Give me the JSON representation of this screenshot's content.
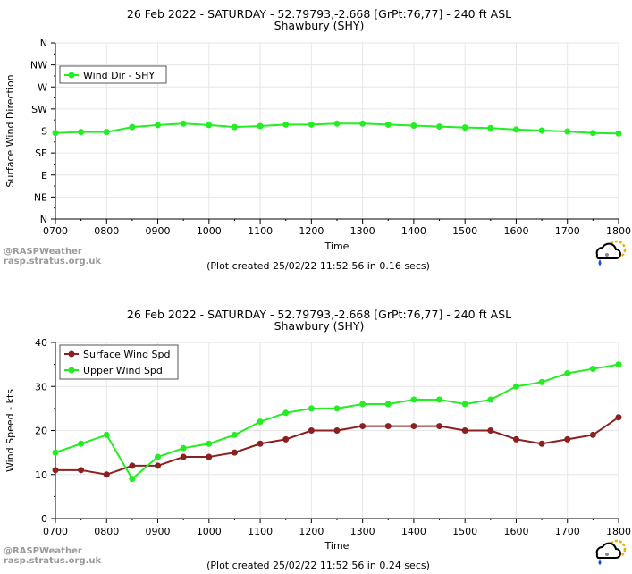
{
  "credit": {
    "line1": "@RASPWeather",
    "line2": "rasp.stratus.org.uk"
  },
  "colors": {
    "green": "#22ee22",
    "red": "#8b2020",
    "grid": "#e6e6e6",
    "axis": "#000000"
  },
  "logo_icon": "rain-cloud-sun-icon",
  "chart_data": [
    {
      "type": "line",
      "title": "26 Feb 2022 - SATURDAY - 52.79793,-2.668 [GrPt:76,77]  - 240 ft ASL",
      "subtitle": "Shawbury (SHY)",
      "xlabel": "Time",
      "ylabel": "Surface Wind Direction",
      "footer": "(Plot created 25/02/22 11:52:56 in 0.16 secs)",
      "x": [
        "0700",
        "0730",
        "0800",
        "0830",
        "0900",
        "0930",
        "1000",
        "1030",
        "1100",
        "1130",
        "1200",
        "1230",
        "1300",
        "1330",
        "1400",
        "1430",
        "1500",
        "1530",
        "1600",
        "1630",
        "1700",
        "1730",
        "1800"
      ],
      "xtick_labels": [
        "0700",
        "0800",
        "0900",
        "1000",
        "1100",
        "1200",
        "1300",
        "1400",
        "1500",
        "1600",
        "1700",
        "1800"
      ],
      "ytick_labels": [
        "N",
        "NE",
        "E",
        "SE",
        "S",
        "SW",
        "W",
        "NW",
        "N"
      ],
      "ylim": [
        0,
        360
      ],
      "grid": true,
      "legend_position": "top-left",
      "series": [
        {
          "name": "Wind Dir - SHY",
          "color": "#22ee22",
          "values": [
            176,
            178,
            178,
            188,
            192,
            195,
            192,
            188,
            190,
            193,
            193,
            195,
            195,
            193,
            191,
            189,
            187,
            186,
            183,
            181,
            179,
            176,
            175
          ]
        }
      ]
    },
    {
      "type": "line",
      "title": "26 Feb 2022 - SATURDAY - 52.79793,-2.668 [GrPt:76,77]  - 240 ft ASL",
      "subtitle": "Shawbury (SHY)",
      "xlabel": "Time",
      "ylabel": "Wind Speed - kts",
      "footer": "(Plot created 25/02/22 11:52:56 in 0.24 secs)",
      "x": [
        "0700",
        "0730",
        "0800",
        "0830",
        "0900",
        "0930",
        "1000",
        "1030",
        "1100",
        "1130",
        "1200",
        "1230",
        "1300",
        "1330",
        "1400",
        "1430",
        "1500",
        "1530",
        "1600",
        "1630",
        "1700",
        "1730",
        "1800"
      ],
      "xtick_labels": [
        "0700",
        "0800",
        "0900",
        "1000",
        "1100",
        "1200",
        "1300",
        "1400",
        "1500",
        "1600",
        "1700",
        "1800"
      ],
      "ytick_labels": [
        "0",
        "10",
        "20",
        "30",
        "40"
      ],
      "ylim": [
        0,
        40
      ],
      "grid": true,
      "legend_position": "top-left",
      "series": [
        {
          "name": "Surface Wind Spd",
          "color": "#8b2020",
          "values": [
            11,
            11,
            10,
            12,
            12,
            14,
            14,
            15,
            17,
            18,
            20,
            20,
            21,
            21,
            21,
            21,
            20,
            20,
            18,
            17,
            18,
            19,
            23
          ]
        },
        {
          "name": "Upper Wind Spd",
          "color": "#22ee22",
          "values": [
            15,
            17,
            19,
            9,
            14,
            16,
            17,
            19,
            22,
            24,
            25,
            25,
            26,
            26,
            27,
            27,
            26,
            27,
            30,
            31,
            33,
            34,
            35
          ]
        }
      ]
    }
  ]
}
